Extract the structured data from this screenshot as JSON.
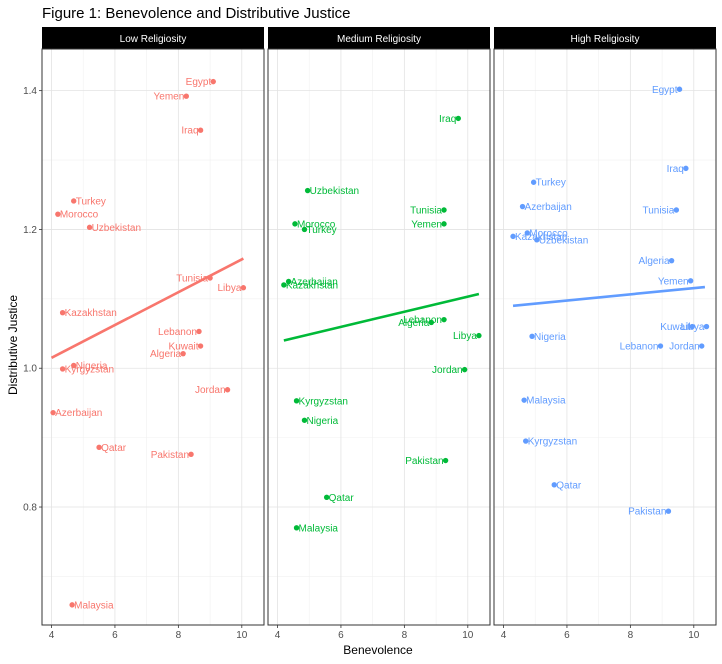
{
  "chart_data": {
    "type": "scatter",
    "title": "Figure 1: Benevolence and Distributive Justice",
    "xlabel": "Benevolence",
    "ylabel": "Distributive Justice",
    "xlim": [
      3.7,
      10.7
    ],
    "ylim": [
      0.63,
      1.46
    ],
    "x_ticks": [
      4,
      6,
      8,
      10
    ],
    "y_ticks": [
      0.8,
      1.0,
      1.2,
      1.4
    ],
    "y_tick_labels": [
      "0.8",
      "1.0",
      "1.2",
      "1.4"
    ],
    "grid": true,
    "panels": [
      {
        "name": "Low Religiosity",
        "color": "#F8766D",
        "fit_line": {
          "x": [
            4.0,
            10.05
          ],
          "y": [
            1.015,
            1.158
          ]
        },
        "points": [
          {
            "label": "Egypt",
            "x": 9.1,
            "y": 1.413
          },
          {
            "label": "Yemen",
            "x": 8.25,
            "y": 1.392
          },
          {
            "label": "Iraq",
            "x": 8.7,
            "y": 1.343
          },
          {
            "label": "Turkey",
            "x": 4.7,
            "y": 1.241
          },
          {
            "label": "Morocco",
            "x": 4.2,
            "y": 1.222
          },
          {
            "label": "Uzbekistan",
            "x": 5.2,
            "y": 1.203
          },
          {
            "label": "Tunisia",
            "x": 9.0,
            "y": 1.13
          },
          {
            "label": "Libya",
            "x": 10.05,
            "y": 1.116
          },
          {
            "label": "Kazakhstan",
            "x": 4.35,
            "y": 1.08
          },
          {
            "label": "Lebanon",
            "x": 8.65,
            "y": 1.053
          },
          {
            "label": "Kuwait",
            "x": 8.7,
            "y": 1.032
          },
          {
            "label": "Algeria",
            "x": 8.15,
            "y": 1.021
          },
          {
            "label": "Nigeria",
            "x": 4.7,
            "y": 1.004
          },
          {
            "label": "Kyrgyzstan",
            "x": 4.35,
            "y": 0.999
          },
          {
            "label": "Jordan",
            "x": 9.55,
            "y": 0.969
          },
          {
            "label": "Azerbaijan",
            "x": 4.05,
            "y": 0.936
          },
          {
            "label": "Qatar",
            "x": 5.5,
            "y": 0.886
          },
          {
            "label": "Pakistan",
            "x": 8.4,
            "y": 0.876
          },
          {
            "label": "Malaysia",
            "x": 4.65,
            "y": 0.659
          }
        ]
      },
      {
        "name": "Medium Religiosity",
        "color": "#00BA38",
        "fit_line": {
          "x": [
            4.2,
            10.35
          ],
          "y": [
            1.04,
            1.107
          ]
        },
        "points": [
          {
            "label": "Iraq",
            "x": 9.7,
            "y": 1.36
          },
          {
            "label": "Uzbekistan",
            "x": 4.95,
            "y": 1.256
          },
          {
            "label": "Tunisia",
            "x": 9.25,
            "y": 1.228
          },
          {
            "label": "Yemen",
            "x": 9.25,
            "y": 1.208
          },
          {
            "label": "Morocco",
            "x": 4.55,
            "y": 1.208
          },
          {
            "label": "Turkey",
            "x": 4.85,
            "y": 1.2
          },
          {
            "label": "Azerbaijan",
            "x": 4.35,
            "y": 1.125
          },
          {
            "label": "Kazakhstan",
            "x": 4.2,
            "y": 1.12
          },
          {
            "label": "Lebanon",
            "x": 9.25,
            "y": 1.07
          },
          {
            "label": "Algeria",
            "x": 8.85,
            "y": 1.066
          },
          {
            "label": "Libya",
            "x": 10.35,
            "y": 1.047
          },
          {
            "label": "Jordan",
            "x": 9.9,
            "y": 0.998
          },
          {
            "label": "Kyrgyzstan",
            "x": 4.6,
            "y": 0.953
          },
          {
            "label": "Nigeria",
            "x": 4.85,
            "y": 0.925
          },
          {
            "label": "Pakistan",
            "x": 9.3,
            "y": 0.867
          },
          {
            "label": "Qatar",
            "x": 5.55,
            "y": 0.814
          },
          {
            "label": "Malaysia",
            "x": 4.6,
            "y": 0.77
          }
        ]
      },
      {
        "name": "High Religiosity",
        "color": "#619CFF",
        "fit_line": {
          "x": [
            4.3,
            10.35
          ],
          "y": [
            1.09,
            1.117
          ]
        },
        "points": [
          {
            "label": "Egypt",
            "x": 9.55,
            "y": 1.402
          },
          {
            "label": "Iraq",
            "x": 9.75,
            "y": 1.288
          },
          {
            "label": "Turkey",
            "x": 4.95,
            "y": 1.268
          },
          {
            "label": "Azerbaijan",
            "x": 4.6,
            "y": 1.233
          },
          {
            "label": "Tunisia",
            "x": 9.45,
            "y": 1.228
          },
          {
            "label": "Morocco",
            "x": 4.75,
            "y": 1.195
          },
          {
            "label": "Kazakhstan",
            "x": 4.3,
            "y": 1.19
          },
          {
            "label": "Uzbekistan",
            "x": 5.05,
            "y": 1.185
          },
          {
            "label": "Algeria",
            "x": 9.3,
            "y": 1.155
          },
          {
            "label": "Yemen",
            "x": 9.9,
            "y": 1.126
          },
          {
            "label": "Kuwait",
            "x": 9.95,
            "y": 1.06
          },
          {
            "label": "Libya",
            "x": 10.4,
            "y": 1.06
          },
          {
            "label": "Nigeria",
            "x": 4.9,
            "y": 1.046
          },
          {
            "label": "Lebanon",
            "x": 8.95,
            "y": 1.032
          },
          {
            "label": "Jordan",
            "x": 10.25,
            "y": 1.032
          },
          {
            "label": "Malaysia",
            "x": 4.65,
            "y": 0.954
          },
          {
            "label": "Kyrgyzstan",
            "x": 4.7,
            "y": 0.895
          },
          {
            "label": "Qatar",
            "x": 5.6,
            "y": 0.832
          },
          {
            "label": "Pakistan",
            "x": 9.2,
            "y": 0.794
          }
        ]
      }
    ]
  }
}
